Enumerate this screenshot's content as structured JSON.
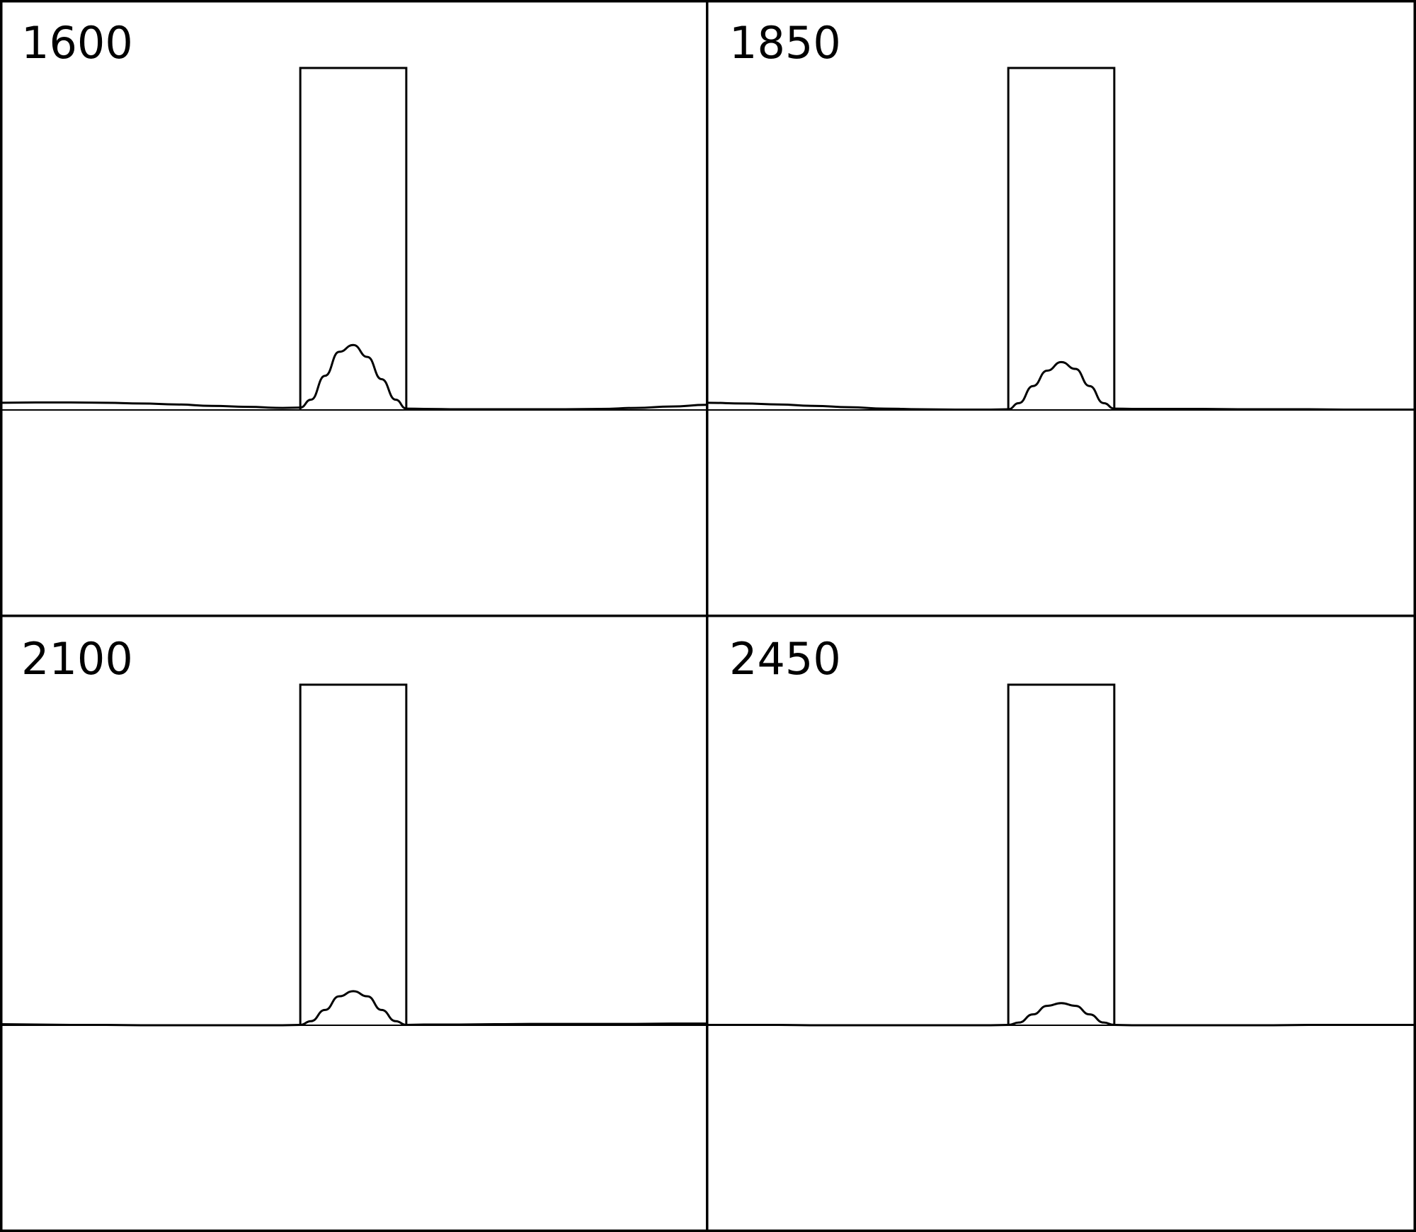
{
  "chart_data": {
    "type": "line",
    "colors": {
      "line": "#000000",
      "background": "#ffffff"
    },
    "panels": [
      {
        "label": "1600",
        "barrier": {
          "x_start": 0.425,
          "x_end": 0.575,
          "height": 1.0
        },
        "series": [
          {
            "x": [
              0.0,
              0.05,
              0.1,
              0.15,
              0.2,
              0.25,
              0.3,
              0.35,
              0.4,
              0.425,
              0.44,
              0.46,
              0.48,
              0.5,
              0.52,
              0.54,
              0.56,
              0.575,
              0.6,
              0.65,
              0.7,
              0.75,
              0.8,
              0.85,
              0.9,
              0.95,
              1.0
            ],
            "y": [
              0.021,
              0.022,
              0.022,
              0.021,
              0.019,
              0.016,
              0.012,
              0.009,
              0.006,
              0.007,
              0.03,
              0.1,
              0.17,
              0.19,
              0.155,
              0.09,
              0.03,
              0.004,
              0.003,
              0.002,
              0.002,
              0.002,
              0.002,
              0.003,
              0.006,
              0.01,
              0.015
            ]
          },
          {
            "x": [
              0.0,
              0.25,
              0.425,
              0.575,
              0.75,
              1.0
            ],
            "y": [
              0.0,
              0.0,
              0.0,
              0.0,
              0.0,
              0.0
            ]
          }
        ]
      },
      {
        "label": "1850",
        "barrier": {
          "x_start": 0.425,
          "x_end": 0.575,
          "height": 1.0
        },
        "series": [
          {
            "x": [
              0.0,
              0.05,
              0.1,
              0.15,
              0.2,
              0.25,
              0.3,
              0.35,
              0.4,
              0.425,
              0.44,
              0.46,
              0.48,
              0.5,
              0.52,
              0.54,
              0.56,
              0.575,
              0.6,
              0.65,
              0.7,
              0.75,
              0.8,
              0.85,
              0.9,
              0.95,
              1.0
            ],
            "y": [
              0.021,
              0.019,
              0.016,
              0.012,
              0.008,
              0.004,
              0.002,
              0.001,
              0.001,
              0.002,
              0.02,
              0.07,
              0.115,
              0.14,
              0.12,
              0.07,
              0.02,
              0.004,
              0.003,
              0.003,
              0.003,
              0.002,
              0.002,
              0.002,
              0.001,
              0.001,
              0.001
            ]
          },
          {
            "x": [
              0.0,
              0.25,
              0.425,
              0.575,
              0.75,
              1.0
            ],
            "y": [
              0.0,
              0.0,
              0.0,
              0.0,
              0.0,
              0.0
            ]
          }
        ]
      },
      {
        "label": "2100",
        "barrier": {
          "x_start": 0.425,
          "x_end": 0.575,
          "height": 1.0
        },
        "series": [
          {
            "x": [
              0.0,
              0.05,
              0.1,
              0.15,
              0.2,
              0.25,
              0.3,
              0.35,
              0.4,
              0.425,
              0.44,
              0.46,
              0.48,
              0.5,
              0.52,
              0.54,
              0.56,
              0.575,
              0.6,
              0.65,
              0.7,
              0.75,
              0.8,
              0.85,
              0.9,
              0.95,
              1.0
            ],
            "y": [
              0.003,
              0.002,
              0.001,
              0.001,
              0.0,
              0.0,
              0.0,
              0.0,
              0.0,
              0.001,
              0.012,
              0.045,
              0.085,
              0.1,
              0.085,
              0.045,
              0.012,
              0.001,
              0.002,
              0.002,
              0.003,
              0.004,
              0.004,
              0.004,
              0.004,
              0.005,
              0.005
            ]
          },
          {
            "x": [
              0.0,
              0.25,
              0.425,
              0.575,
              0.75,
              1.0
            ],
            "y": [
              0.0,
              0.0,
              0.0,
              0.0,
              0.0,
              0.0
            ]
          }
        ]
      },
      {
        "label": "2450",
        "barrier": {
          "x_start": 0.425,
          "x_end": 0.575,
          "height": 1.0
        },
        "series": [
          {
            "x": [
              0.0,
              0.05,
              0.1,
              0.15,
              0.2,
              0.25,
              0.3,
              0.35,
              0.4,
              0.425,
              0.44,
              0.46,
              0.48,
              0.5,
              0.52,
              0.54,
              0.56,
              0.575,
              0.6,
              0.65,
              0.7,
              0.75,
              0.8,
              0.85,
              0.9,
              0.95,
              1.0
            ],
            "y": [
              0.001,
              0.001,
              0.001,
              0.0,
              0.0,
              0.0,
              0.0,
              0.0,
              0.0,
              0.001,
              0.008,
              0.032,
              0.057,
              0.065,
              0.057,
              0.032,
              0.008,
              0.001,
              0.0,
              0.0,
              0.0,
              0.0,
              0.0,
              0.001,
              0.001,
              0.001,
              0.001
            ]
          },
          {
            "x": [
              0.0,
              0.25,
              0.425,
              0.575,
              0.75,
              1.0
            ],
            "y": [
              0.0,
              0.0,
              0.0,
              0.0,
              0.0,
              0.0
            ]
          }
        ]
      }
    ],
    "xlim": [
      0,
      1
    ],
    "ylim": [
      -0.6,
      1.0
    ],
    "grid": false,
    "title": "",
    "xlabel": "",
    "ylabel": ""
  }
}
